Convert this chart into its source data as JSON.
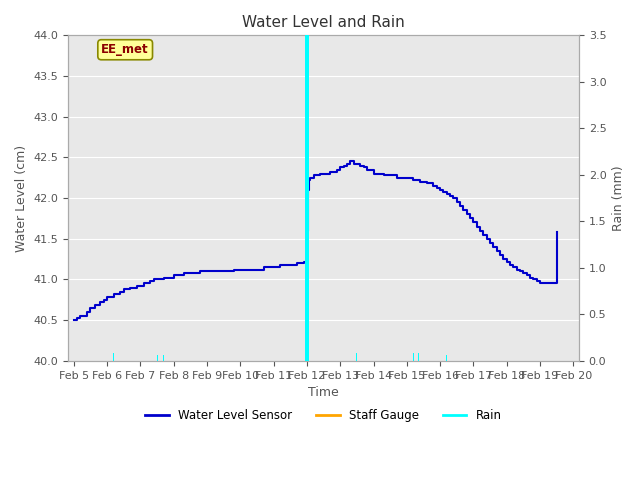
{
  "title": "Water Level and Rain",
  "xlabel": "Time",
  "ylabel_left": "Water Level (cm)",
  "ylabel_right": "Rain (mm)",
  "ylim_left": [
    40.0,
    44.0
  ],
  "ylim_right": [
    0.0,
    3.5
  ],
  "xlim": [
    4.83,
    20.17
  ],
  "xtick_labels": [
    "Feb 5",
    "Feb 6",
    "Feb 7",
    "Feb 8",
    "Feb 9",
    "Feb 10",
    "Feb 11",
    "Feb 12",
    "Feb 13",
    "Feb 14",
    "Feb 15",
    "Feb 16",
    "Feb 17",
    "Feb 18",
    "Feb 19",
    "Feb 20"
  ],
  "xtick_positions": [
    5,
    6,
    7,
    8,
    9,
    10,
    11,
    12,
    13,
    14,
    15,
    16,
    17,
    18,
    19,
    20
  ],
  "annotation_text": "EE_met",
  "annotation_color": "#8B0000",
  "annotation_bg": "#FFFF99",
  "bg_color": "#E8E8E8",
  "water_level_color": "#0000CC",
  "staff_gauge_color": "#FFA500",
  "rain_color": "#00FFFF",
  "water_level_x": [
    5.0,
    5.1,
    5.2,
    5.4,
    5.5,
    5.65,
    5.8,
    5.9,
    6.0,
    6.1,
    6.2,
    6.3,
    6.4,
    6.5,
    6.6,
    6.7,
    6.8,
    6.9,
    7.0,
    7.1,
    7.2,
    7.3,
    7.4,
    7.5,
    7.6,
    7.7,
    7.8,
    7.9,
    8.0,
    8.1,
    8.2,
    8.3,
    8.4,
    8.5,
    8.6,
    8.7,
    8.8,
    8.9,
    9.0,
    9.1,
    9.2,
    9.3,
    9.4,
    9.5,
    9.6,
    9.7,
    9.8,
    9.9,
    10.0,
    10.1,
    10.2,
    10.3,
    10.4,
    10.5,
    10.6,
    10.7,
    10.8,
    10.9,
    11.0,
    11.1,
    11.2,
    11.3,
    11.4,
    11.5,
    11.6,
    11.7,
    11.8,
    11.9,
    11.95,
    11.97,
    11.99,
    12.0,
    12.01,
    12.03,
    12.05,
    12.1,
    12.2,
    12.3,
    12.4,
    12.5,
    12.6,
    12.7,
    12.8,
    12.9,
    13.0,
    13.1,
    13.2,
    13.3,
    13.4,
    13.5,
    13.6,
    13.7,
    13.8,
    13.9,
    14.0,
    14.1,
    14.2,
    14.3,
    14.4,
    14.5,
    14.6,
    14.7,
    14.8,
    14.9,
    15.0,
    15.1,
    15.2,
    15.3,
    15.4,
    15.5,
    15.6,
    15.7,
    15.8,
    15.9,
    16.0,
    16.1,
    16.2,
    16.3,
    16.4,
    16.5,
    16.6,
    16.7,
    16.8,
    16.9,
    17.0,
    17.1,
    17.2,
    17.3,
    17.4,
    17.5,
    17.6,
    17.7,
    17.8,
    17.9,
    18.0,
    18.1,
    18.2,
    18.3,
    18.4,
    18.5,
    18.6,
    18.7,
    18.8,
    18.9,
    19.0,
    19.1,
    19.2,
    19.3,
    19.4,
    19.5
  ],
  "water_level_y": [
    40.5,
    40.52,
    40.55,
    40.6,
    40.65,
    40.68,
    40.72,
    40.75,
    40.78,
    40.78,
    40.82,
    40.82,
    40.85,
    40.88,
    40.88,
    40.9,
    40.9,
    40.92,
    40.92,
    40.95,
    40.95,
    40.98,
    41.0,
    41.0,
    41.0,
    41.02,
    41.02,
    41.02,
    41.05,
    41.05,
    41.05,
    41.08,
    41.08,
    41.08,
    41.08,
    41.08,
    41.1,
    41.1,
    41.1,
    41.1,
    41.1,
    41.1,
    41.1,
    41.1,
    41.1,
    41.1,
    41.12,
    41.12,
    41.12,
    41.12,
    41.12,
    41.12,
    41.12,
    41.12,
    41.12,
    41.15,
    41.15,
    41.15,
    41.15,
    41.15,
    41.18,
    41.18,
    41.18,
    41.18,
    41.18,
    41.2,
    41.2,
    41.22,
    41.22,
    41.22,
    41.22,
    41.85,
    41.6,
    42.1,
    42.22,
    42.25,
    42.28,
    42.28,
    42.3,
    42.3,
    42.3,
    42.32,
    42.32,
    42.35,
    42.38,
    42.4,
    42.42,
    42.45,
    42.42,
    42.42,
    42.4,
    42.38,
    42.35,
    42.35,
    42.3,
    42.3,
    42.3,
    42.28,
    42.28,
    42.28,
    42.28,
    42.25,
    42.25,
    42.25,
    42.25,
    42.25,
    42.22,
    42.22,
    42.2,
    42.2,
    42.18,
    42.18,
    42.15,
    42.12,
    42.1,
    42.08,
    42.05,
    42.02,
    42.0,
    41.95,
    41.9,
    41.85,
    41.8,
    41.75,
    41.7,
    41.65,
    41.6,
    41.55,
    41.5,
    41.45,
    41.4,
    41.35,
    41.3,
    41.25,
    41.22,
    41.18,
    41.15,
    41.12,
    41.1,
    41.08,
    41.05,
    41.02,
    41.0,
    40.98,
    40.95,
    40.95,
    40.95,
    40.95,
    40.95,
    41.58
  ],
  "rain_bars_x": [
    6.2,
    7.5,
    7.7,
    11.95,
    12.0,
    12.02,
    12.04,
    12.06,
    13.5,
    15.2,
    15.35,
    16.2
  ],
  "rain_bars_height": [
    0.08,
    0.06,
    0.06,
    3.5,
    3.5,
    3.5,
    3.5,
    3.5,
    0.08,
    0.08,
    0.08,
    0.06
  ],
  "rain_bar_width": 0.03
}
